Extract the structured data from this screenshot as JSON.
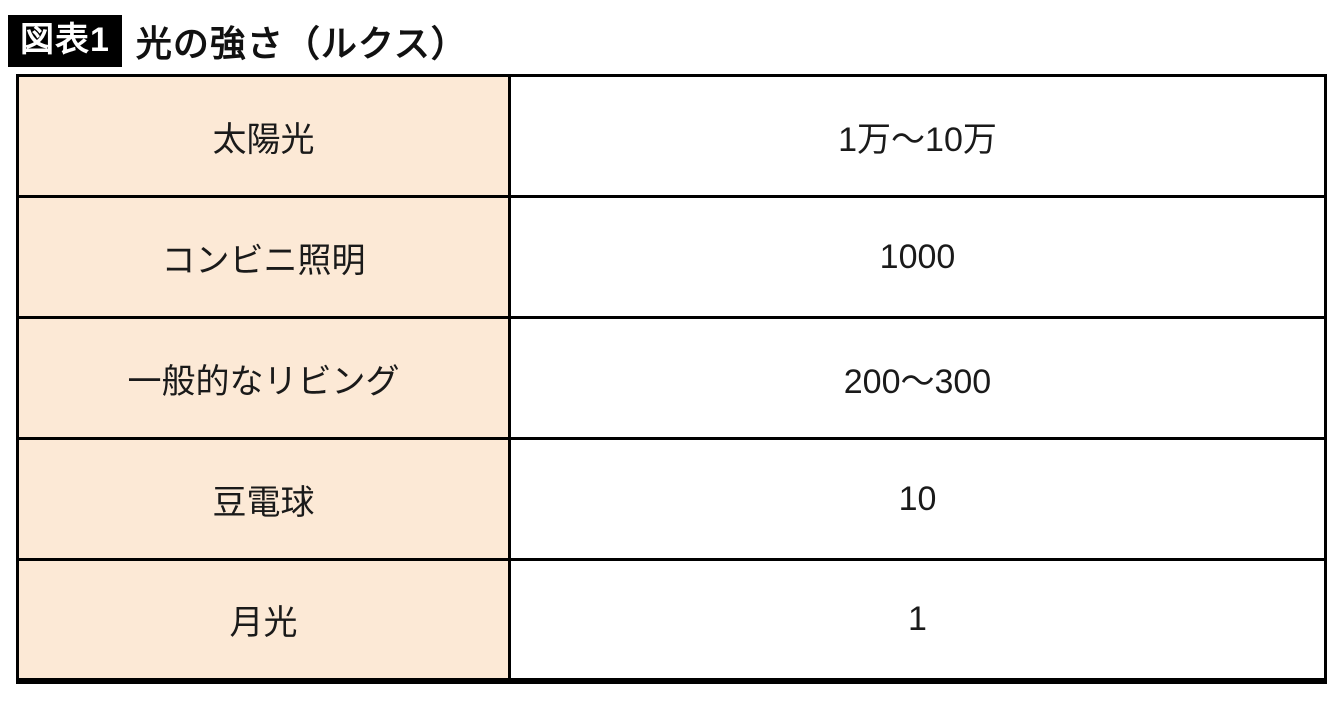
{
  "header": {
    "badge": "図表1",
    "title": "光の強さ（ルクス）"
  },
  "table": {
    "rows": [
      {
        "label": "太陽光",
        "value": "1万〜10万"
      },
      {
        "label": "コンビニ照明",
        "value": "1000"
      },
      {
        "label": "一般的なリビング",
        "value": "200〜300"
      },
      {
        "label": "豆電球",
        "value": "10"
      },
      {
        "label": "月光",
        "value": "1"
      }
    ]
  },
  "colors": {
    "label_column_bg": "#fce9d6",
    "border": "#000000",
    "badge_bg": "#000000",
    "badge_text": "#ffffff"
  },
  "chart_data": {
    "type": "table",
    "title": "図表1 光の強さ（ルクス）",
    "rows": [
      [
        "太陽光",
        "1万〜10万"
      ],
      [
        "コンビニ照明",
        "1000"
      ],
      [
        "一般的なリビング",
        "200〜300"
      ],
      [
        "豆電球",
        "10"
      ],
      [
        "月光",
        "1"
      ]
    ],
    "values_numeric": [
      {
        "source": "太陽光",
        "lux_min": 10000,
        "lux_max": 100000
      },
      {
        "source": "コンビニ照明",
        "lux_min": 1000,
        "lux_max": 1000
      },
      {
        "source": "一般的なリビング",
        "lux_min": 200,
        "lux_max": 300
      },
      {
        "source": "豆電球",
        "lux_min": 10,
        "lux_max": 10
      },
      {
        "source": "月光",
        "lux_min": 1,
        "lux_max": 1
      }
    ]
  }
}
